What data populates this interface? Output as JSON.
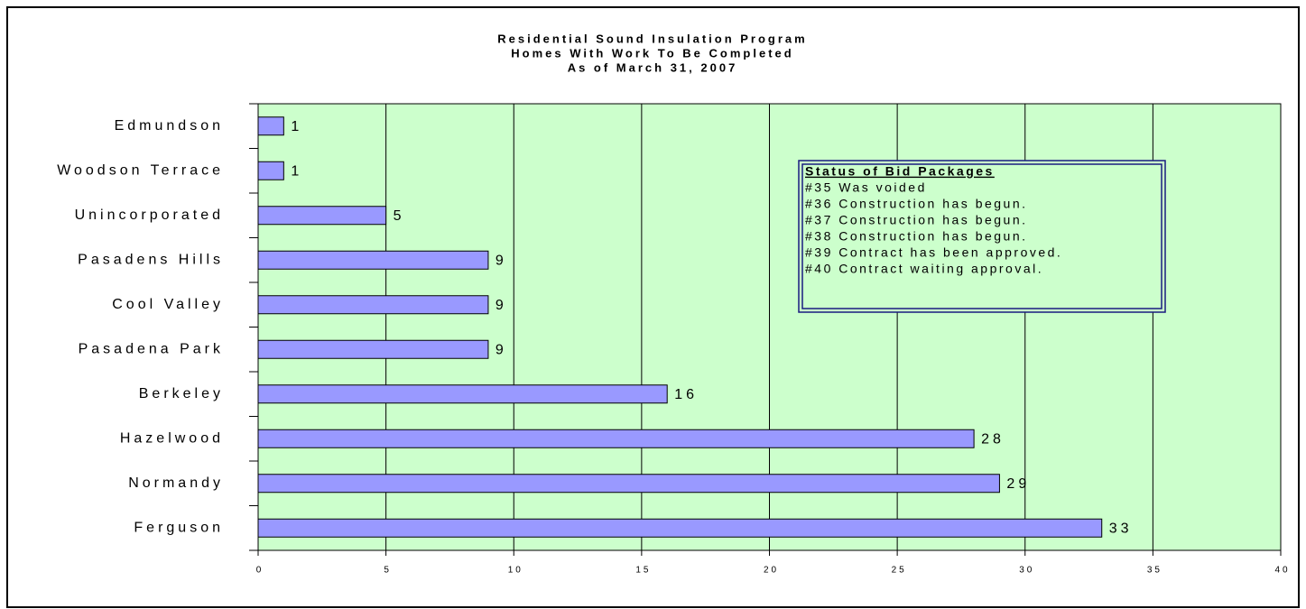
{
  "chart_data": {
    "type": "bar",
    "orientation": "horizontal",
    "title": [
      "Residential Sound Insulation Program",
      "Homes With Work To Be Completed",
      "As of March 31, 2007"
    ],
    "categories": [
      "Edmundson",
      "Woodson Terrace",
      "Unincorporated",
      "Pasadens Hills",
      "Cool Valley",
      "Pasadena Park",
      "Berkeley",
      "Hazelwood",
      "Normandy",
      "Ferguson"
    ],
    "values": [
      1,
      1,
      5,
      9,
      9,
      9,
      16,
      28,
      29,
      33
    ],
    "color": "#9999ff",
    "xlim": [
      0,
      40
    ],
    "xticks": [
      0,
      5,
      10,
      15,
      20,
      25,
      30,
      35,
      40
    ],
    "grid": true,
    "annotation": {
      "title": "Status of Bid Packages",
      "lines": [
        "#35  Was voided",
        "#36  Construction has begun.",
        "#37  Construction has begun.",
        "#38  Construction has begun.",
        "#39  Contract has been approved.",
        "#40  Contract waiting approval."
      ]
    }
  }
}
